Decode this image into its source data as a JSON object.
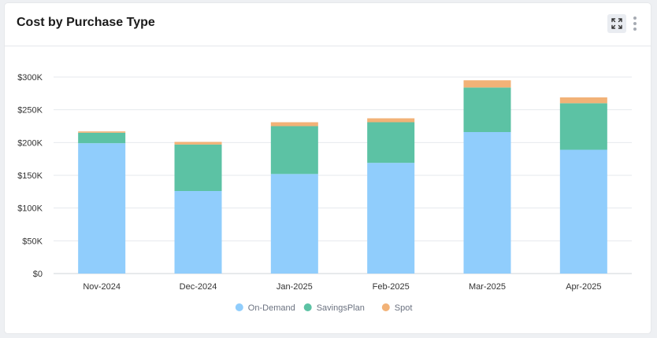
{
  "card": {
    "title": "Cost by Purchase Type"
  },
  "colors": {
    "On-Demand": "#90cdfc",
    "SavingsPlan": "#5cc2a4",
    "Spot": "#f2b277"
  },
  "chart_data": {
    "type": "bar",
    "stacked": true,
    "title": "Cost by Purchase Type",
    "xlabel": "",
    "ylabel": "",
    "categories": [
      "Nov-2024",
      "Dec-2024",
      "Jan-2025",
      "Feb-2025",
      "Mar-2025",
      "Apr-2025"
    ],
    "series": [
      {
        "name": "On-Demand",
        "values": [
          199000,
          126000,
          152000,
          169000,
          216000,
          189000
        ]
      },
      {
        "name": "SavingsPlan",
        "values": [
          16000,
          71000,
          73000,
          62000,
          68000,
          71000
        ]
      },
      {
        "name": "Spot",
        "values": [
          2000,
          4000,
          6000,
          6000,
          11000,
          9000
        ]
      }
    ],
    "ylim": [
      0,
      300000
    ],
    "yticks": [
      0,
      50000,
      100000,
      150000,
      200000,
      250000,
      300000
    ],
    "ytick_labels": [
      "$0",
      "$50K",
      "$100K",
      "$150K",
      "$200K",
      "$250K",
      "$300K"
    ],
    "grid": true,
    "legend_position": "bottom-center"
  }
}
